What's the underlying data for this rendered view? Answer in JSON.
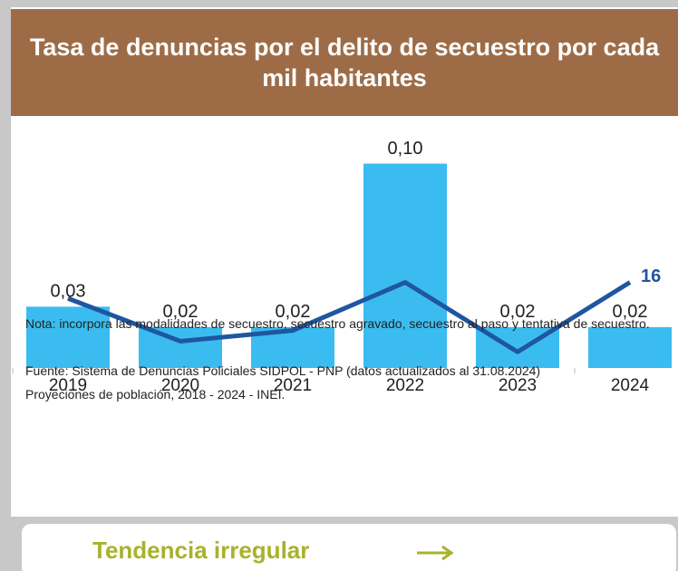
{
  "header": {
    "title": "Tasa de denuncias por el delito de secuestro por cada mil habitantes"
  },
  "chart_data": {
    "type": "bar",
    "categories": [
      "2019",
      "2020",
      "2021",
      "2022",
      "2023",
      "2024"
    ],
    "series": [
      {
        "type": "bar",
        "color": "#3bbcf0",
        "values": [
          0.03,
          0.02,
          0.02,
          0.1,
          0.02,
          0.02
        ],
        "value_labels": [
          "0,03",
          "0,02",
          "0,02",
          "0,10",
          "0,02",
          "0,02"
        ]
      },
      {
        "type": "line",
        "axis": "y2",
        "color": "#1f56a0",
        "values": [
          13,
          5,
          7,
          16,
          3,
          16
        ],
        "value_labels": [
          null,
          null,
          null,
          null,
          null,
          "16"
        ]
      }
    ],
    "ylim": [
      0,
      0.11
    ],
    "y2lim": [
      0,
      42
    ]
  },
  "notes": [
    "Nota: incorpora las modalidades de secuestro, secuestro agravado, secuestro al paso y tentativa de secuestro.",
    "Fuente: Sistema de Denuncias Policiales SIDPOL - PNP (datos actualizados al 31.08.2024)",
    "Proyeciones de población, 2018 - 2024 - INEI."
  ],
  "footer": {
    "label": "Tendencia irregular"
  }
}
